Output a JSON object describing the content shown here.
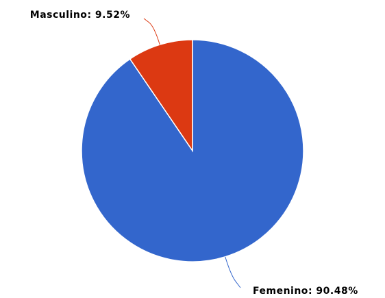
{
  "chart_data": {
    "type": "pie",
    "categories": [
      "Femenino",
      "Masculino"
    ],
    "values": [
      90.48,
      9.52
    ],
    "value_labels": [
      "90.48%",
      "9.52%"
    ],
    "colors": [
      "#3366cc",
      "#dc3912"
    ]
  }
}
